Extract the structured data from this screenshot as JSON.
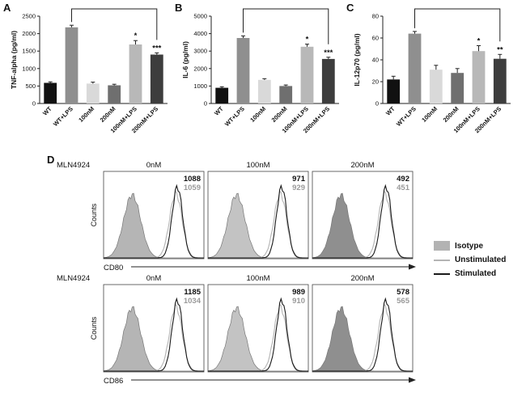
{
  "panel_letters": {
    "a": "A",
    "b": "B",
    "c": "C",
    "d": "D"
  },
  "chart_data": {
    "bar_charts": [
      {
        "panel": "A",
        "type": "bar",
        "ylabel": "TNF-alpha (pg/ml)",
        "ymax": 2500,
        "ystep": 500,
        "categories": [
          "WT",
          "WT+LPS",
          "100nM",
          "200nM",
          "100nM+LPS",
          "200nM+LPS"
        ],
        "values": [
          590,
          2180,
          570,
          520,
          1690,
          1400
        ],
        "errors": [
          30,
          60,
          40,
          30,
          110,
          50
        ],
        "colors": [
          "#111111",
          "#8f8f8f",
          "#d9d9d9",
          "#6f6f6f",
          "#b8b8b8",
          "#3d3d3d"
        ],
        "significance": [
          "",
          "",
          "",
          "",
          "*",
          "***"
        ],
        "bracket": {
          "from": 1,
          "to": 5
        }
      },
      {
        "panel": "B",
        "type": "bar",
        "ylabel": "IL-6 (pg/ml)",
        "ymax": 5000,
        "ystep": 1000,
        "categories": [
          "WT",
          "WT+LPS",
          "100nM",
          "200nM",
          "100nM+LPS",
          "200nM+LPS"
        ],
        "values": [
          900,
          3750,
          1350,
          1000,
          3250,
          2550
        ],
        "errors": [
          60,
          120,
          70,
          60,
          150,
          100
        ],
        "colors": [
          "#111111",
          "#8f8f8f",
          "#d9d9d9",
          "#6f6f6f",
          "#b8b8b8",
          "#3d3d3d"
        ],
        "significance": [
          "",
          "",
          "",
          "",
          "*",
          "***"
        ],
        "bracket": {
          "from": 1,
          "to": 5
        }
      },
      {
        "panel": "C",
        "type": "bar",
        "ylabel": "IL-12p70 (pg/ml)",
        "ymax": 80,
        "ystep": 20,
        "categories": [
          "WT",
          "WT+LPS",
          "100nM",
          "200nM",
          "100nM+LPS",
          "200nM+LPS"
        ],
        "values": [
          22,
          64,
          31,
          28,
          48,
          41
        ],
        "errors": [
          3,
          2,
          4,
          4,
          5,
          4
        ],
        "colors": [
          "#111111",
          "#8f8f8f",
          "#d9d9d9",
          "#6f6f6f",
          "#b8b8b8",
          "#3d3d3d"
        ],
        "significance": [
          "",
          "",
          "",
          "",
          "*",
          "**"
        ],
        "bracket": {
          "from": 1,
          "to": 5
        }
      }
    ],
    "flow": {
      "label": "D",
      "row_label": "MLN4924",
      "rows": [
        {
          "type": "histogram",
          "xlabel": "CD80",
          "ylabel": "Counts",
          "panels": [
            {
              "title": "0nM",
              "stim": 1088,
              "unstim": 1059,
              "iso_fill": "#b5b5b5"
            },
            {
              "title": "100nM",
              "stim": 971,
              "unstim": 929,
              "iso_fill": "#c3c3c3"
            },
            {
              "title": "200nM",
              "stim": 492,
              "unstim": 451,
              "iso_fill": "#8f8f8f"
            }
          ]
        },
        {
          "type": "histogram",
          "xlabel": "CD86",
          "ylabel": "Counts",
          "panels": [
            {
              "title": "0nM",
              "stim": 1185,
              "unstim": 1034,
              "iso_fill": "#b5b5b5"
            },
            {
              "title": "100nM",
              "stim": 989,
              "unstim": 910,
              "iso_fill": "#c3c3c3"
            },
            {
              "title": "200nM",
              "stim": 578,
              "unstim": 565,
              "iso_fill": "#8f8f8f"
            }
          ]
        }
      ],
      "legend": [
        {
          "label": "Isotype",
          "type": "fill",
          "color": "#b3b3b3"
        },
        {
          "label": "Unstimulated",
          "type": "line",
          "color": "#b4b4b4"
        },
        {
          "label": "Stimulated",
          "type": "line",
          "color": "#1a1a1a"
        }
      ]
    }
  }
}
